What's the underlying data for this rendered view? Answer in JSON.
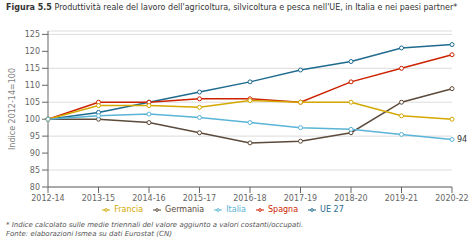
{
  "chart_data": {
    "type": "line",
    "title": "Figura 5.5",
    "subtitle": "Produttività reale del lavoro dell'agricoltura, silvicoltura e pesca nell'UE, in Italia e nei paesi partner*",
    "y_label": "Indice 2012-14=100",
    "footnotes": [
      "* Indice calcolato sulle medie triennali del valore aggiunto a valori costanti/occupati.",
      "Fonte: elaborazioni Ismea su dati Eurostat (CN)"
    ],
    "categories": [
      "2012-14",
      "2013-15",
      "2014-16",
      "2015-17",
      "2016-18",
      "2017-19",
      "2018-20",
      "2019-21",
      "2020-22"
    ],
    "series": [
      {
        "name": "UE 27",
        "color": "#1f6b8e",
        "values": [
          100,
          102,
          105,
          108,
          111,
          114.5,
          117,
          121,
          122
        ]
      },
      {
        "name": "Germania",
        "color": "#5c4a3a",
        "values": [
          100,
          100,
          99,
          96,
          93,
          93.5,
          96,
          105,
          109
        ]
      },
      {
        "name": "Spagna",
        "color": "#cc2200",
        "values": [
          100,
          105,
          105,
          106,
          106,
          105,
          111,
          115,
          119
        ]
      },
      {
        "name": "Francia",
        "color": "#d4a800",
        "values": [
          100,
          104,
          104,
          103.5,
          105.5,
          105,
          105,
          101,
          100
        ]
      },
      {
        "name": "Italia",
        "color": "#5ab4d6",
        "values": [
          100,
          101,
          101.5,
          100.5,
          99,
          97.5,
          97,
          95.5,
          94
        ]
      }
    ],
    "annotations": [
      {
        "text": "94",
        "x": "2020-22",
        "y": 94
      }
    ],
    "ylim": [
      80,
      126
    ],
    "yticks": [
      80,
      85,
      90,
      95,
      100,
      105,
      110,
      115,
      120,
      125
    ],
    "grid": true,
    "marker": "circle"
  }
}
